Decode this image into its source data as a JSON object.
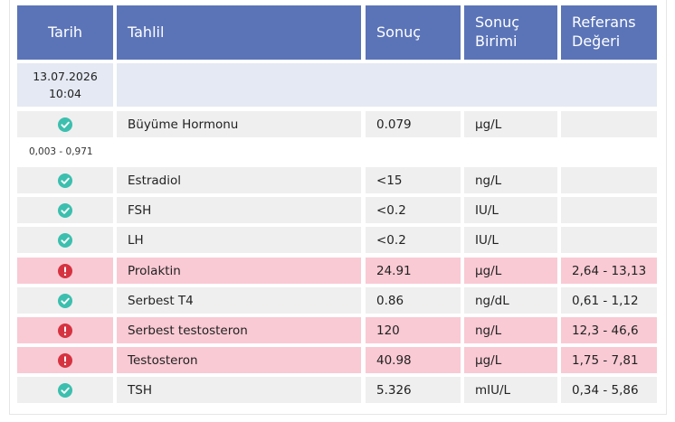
{
  "headers": {
    "date": "Tarih",
    "test": "Tahlil",
    "result": "Sonuç",
    "unit_line1": "Sonuç",
    "unit_line2": "Birimi",
    "ref_line1": "Referans",
    "ref_line2": "Değeri"
  },
  "group": {
    "date": "13.07.2026",
    "time": "10:04"
  },
  "extra_reference": "0,003 - 0,971",
  "rows": [
    {
      "status": "normal",
      "test": "Büyüme Hormonu",
      "result": "0.079",
      "unit": "µg/L",
      "reference": ""
    },
    {
      "status": "normal",
      "test": "Estradiol",
      "result": "<15",
      "unit": "ng/L",
      "reference": ""
    },
    {
      "status": "normal",
      "test": "FSH",
      "result": "<0.2",
      "unit": "IU/L",
      "reference": ""
    },
    {
      "status": "normal",
      "test": "LH",
      "result": "<0.2",
      "unit": "IU/L",
      "reference": ""
    },
    {
      "status": "abnormal",
      "test": "Prolaktin",
      "result": "24.91",
      "unit": "µg/L",
      "reference": "2,64 - 13,13"
    },
    {
      "status": "normal",
      "test": "Serbest T4",
      "result": "0.86",
      "unit": "ng/dL",
      "reference": "0,61 - 1,12"
    },
    {
      "status": "abnormal",
      "test": "Serbest testosteron",
      "result": "120",
      "unit": "ng/L",
      "reference": "12,3 - 46,6"
    },
    {
      "status": "abnormal",
      "test": "Testosteron",
      "result": "40.98",
      "unit": "µg/L",
      "reference": "1,75 - 7,81"
    },
    {
      "status": "normal",
      "test": "TSH",
      "result": "5.326",
      "unit": "mIU/L",
      "reference": "0,34 - 5,86"
    }
  ],
  "colors": {
    "header_bg": "#5b74b8",
    "date_bg": "#e4e9f3",
    "row_bg": "#efefef",
    "abnormal_bg": "#f9cad4",
    "ok_icon": "#3cbfae",
    "alert_icon": "#d63340"
  },
  "icons": {
    "normal": "check-circle-icon",
    "abnormal": "alert-circle-icon"
  }
}
